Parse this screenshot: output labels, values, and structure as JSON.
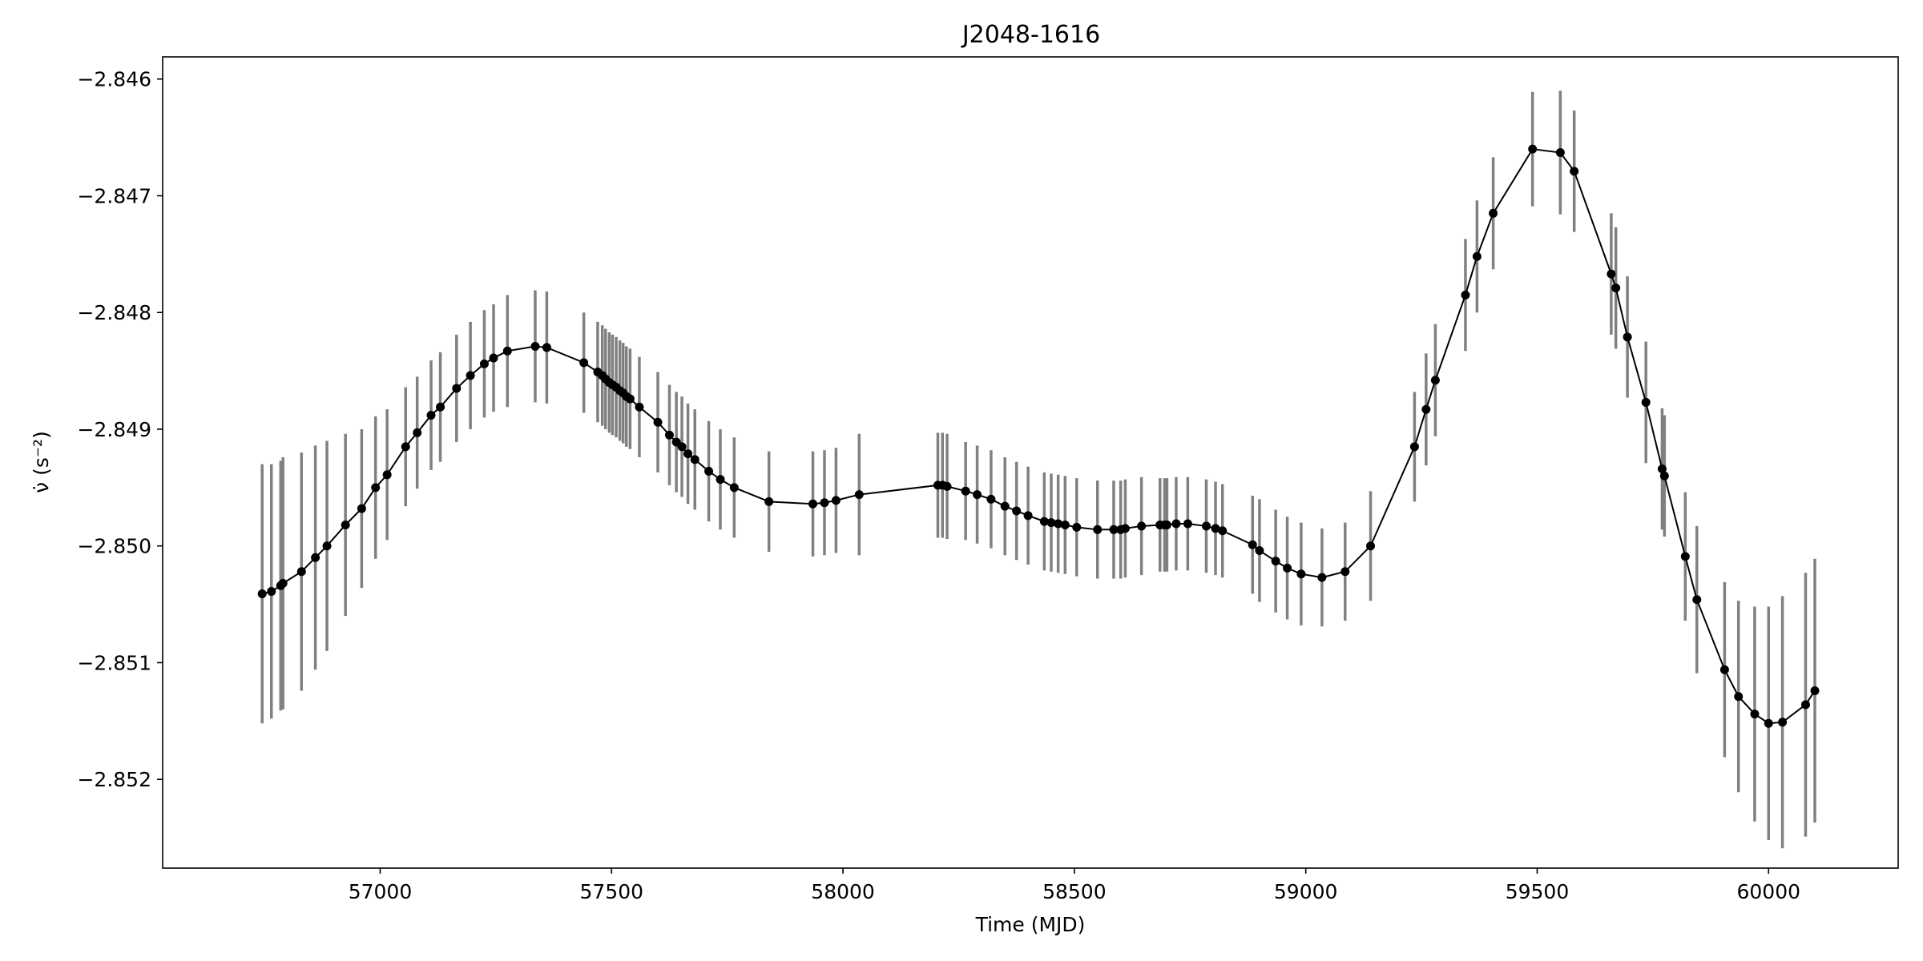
{
  "chart_data": {
    "type": "scatter",
    "title": "J2048-1616",
    "xlabel": "Time (MJD)",
    "ylabel": "ν̇ (s⁻²)",
    "xlim": [
      56530,
      60280
    ],
    "ylim": [
      -2.85276,
      -2.84581
    ],
    "xticks": [
      57000,
      57500,
      58000,
      58500,
      59000,
      59500,
      60000
    ],
    "xtick_labels": [
      "57000",
      "57500",
      "58000",
      "58500",
      "59000",
      "59500",
      "60000"
    ],
    "yticks": [
      -2.846,
      -2.847,
      -2.848,
      -2.849,
      -2.85,
      -2.851,
      -2.852
    ],
    "ytick_labels": [
      "−2.846",
      "−2.847",
      "−2.848",
      "−2.849",
      "−2.850",
      "−2.851",
      "−2.852"
    ],
    "grid": false,
    "legend": "none",
    "colors": {
      "line": "#000000",
      "marker": "#000000",
      "errorbar": "#808080"
    },
    "series": [
      {
        "x": [
          56745,
          56765,
          56785,
          56790,
          56830,
          56860,
          56885,
          56925,
          56960,
          56990,
          57015,
          57055,
          57080,
          57110,
          57130,
          57165,
          57195,
          57225,
          57245,
          57275,
          57335,
          57360,
          57440,
          57470,
          57480,
          57487,
          57495,
          57502,
          57510,
          57518,
          57525,
          57532,
          57540,
          57560,
          57600,
          57625,
          57640,
          57652,
          57665,
          57680,
          57710,
          57735,
          57765,
          57840,
          57935,
          57960,
          57985,
          58035,
          58205,
          58215,
          58225,
          58265,
          58290,
          58320,
          58350,
          58375,
          58400,
          58435,
          58450,
          58465,
          58480,
          58505,
          58550,
          58585,
          58600,
          58610,
          58645,
          58685,
          58695,
          58700,
          58720,
          58745,
          58785,
          58805,
          58820,
          58885,
          58900,
          58935,
          58960,
          58990,
          59035,
          59085,
          59140,
          59235,
          59260,
          59280,
          59345,
          59370,
          59405,
          59490,
          59550,
          59580,
          59660,
          59670,
          59695,
          59735,
          59770,
          59775,
          59820,
          59845,
          59905,
          59935,
          59970,
          60000,
          60030,
          60080,
          60100
        ],
        "y": [
          -2.85041,
          -2.85039,
          -2.85034,
          -2.85032,
          -2.85022,
          -2.8501,
          -2.85,
          -2.84982,
          -2.84968,
          -2.8495,
          -2.84939,
          -2.84915,
          -2.84903,
          -2.84888,
          -2.84881,
          -2.84865,
          -2.84854,
          -2.84844,
          -2.84839,
          -2.84833,
          -2.84829,
          -2.8483,
          -2.84843,
          -2.84851,
          -2.84854,
          -2.84857,
          -2.8486,
          -2.84862,
          -2.84864,
          -2.84867,
          -2.84869,
          -2.84872,
          -2.84874,
          -2.84881,
          -2.84894,
          -2.84905,
          -2.84911,
          -2.84915,
          -2.84921,
          -2.84926,
          -2.84936,
          -2.84943,
          -2.8495,
          -2.84962,
          -2.84964,
          -2.84963,
          -2.84961,
          -2.84956,
          -2.84948,
          -2.84948,
          -2.84949,
          -2.84953,
          -2.84956,
          -2.8496,
          -2.84966,
          -2.8497,
          -2.84974,
          -2.84979,
          -2.8498,
          -2.84981,
          -2.84982,
          -2.84984,
          -2.84986,
          -2.84986,
          -2.84986,
          -2.84985,
          -2.84983,
          -2.84982,
          -2.84982,
          -2.84982,
          -2.84981,
          -2.84981,
          -2.84983,
          -2.84985,
          -2.84987,
          -2.84999,
          -2.85004,
          -2.85013,
          -2.85019,
          -2.85024,
          -2.85027,
          -2.85022,
          -2.85,
          -2.84915,
          -2.84883,
          -2.84858,
          -2.84785,
          -2.84752,
          -2.84715,
          -2.8466,
          -2.84663,
          -2.84679,
          -2.84767,
          -2.84779,
          -2.84821,
          -2.84877,
          -2.84934,
          -2.8494,
          -2.85009,
          -2.85046,
          -2.85106,
          -2.85129,
          -2.85144,
          -2.85152,
          -2.85151,
          -2.85136,
          -2.85124
        ],
        "err": [
          0.00111,
          0.00109,
          0.00107,
          0.00108,
          0.00102,
          0.00096,
          0.0009,
          0.00078,
          0.00068,
          0.00061,
          0.00056,
          0.00051,
          0.00048,
          0.00047,
          0.00047,
          0.00046,
          0.00046,
          0.00046,
          0.00046,
          0.00048,
          0.00048,
          0.00048,
          0.00043,
          0.00043,
          0.00043,
          0.00043,
          0.00043,
          0.00043,
          0.00043,
          0.00043,
          0.00043,
          0.00043,
          0.00043,
          0.00043,
          0.00043,
          0.00043,
          0.00043,
          0.00043,
          0.00043,
          0.00043,
          0.00043,
          0.00043,
          0.00043,
          0.00043,
          0.00045,
          0.00045,
          0.00045,
          0.00052,
          0.00045,
          0.00045,
          0.00045,
          0.00042,
          0.00042,
          0.00042,
          0.00042,
          0.00042,
          0.00042,
          0.00042,
          0.00042,
          0.00042,
          0.00042,
          0.00042,
          0.00042,
          0.00042,
          0.00042,
          0.00042,
          0.00042,
          0.0004,
          0.0004,
          0.0004,
          0.0004,
          0.0004,
          0.0004,
          0.0004,
          0.0004,
          0.00042,
          0.00044,
          0.00044,
          0.00044,
          0.00044,
          0.00042,
          0.00042,
          0.00047,
          0.00047,
          0.00048,
          0.00048,
          0.00048,
          0.00048,
          0.00048,
          0.00049,
          0.00053,
          0.00052,
          0.00052,
          0.00052,
          0.00052,
          0.00052,
          0.00052,
          0.00052,
          0.00055,
          0.00063,
          0.00075,
          0.00082,
          0.00092,
          0.001,
          0.00108,
          0.00113,
          0.00113
        ]
      }
    ]
  }
}
